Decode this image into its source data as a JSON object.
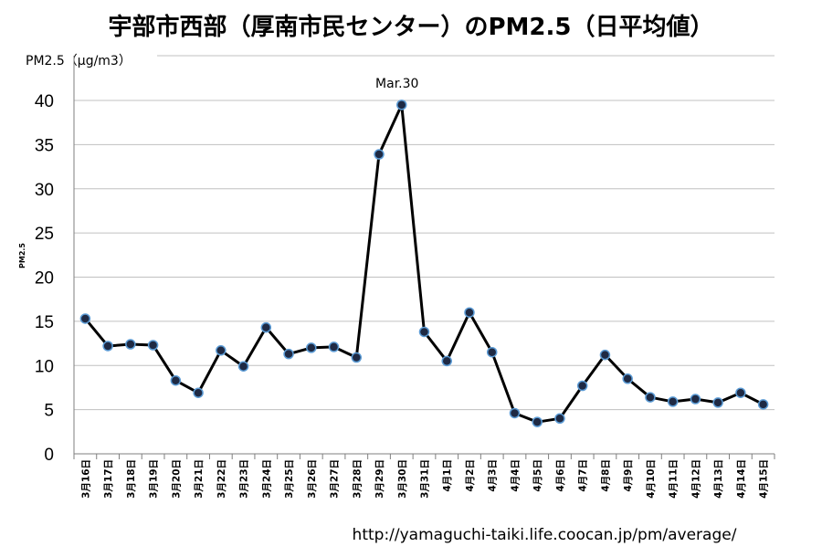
{
  "chart_data": {
    "type": "line",
    "title": "宇部市西部（厚南市民センター）のPM2.5（日平均値）",
    "unit_label": "PM2.5（μg/m3）",
    "ylabel": "PM2.5",
    "ylim": [
      0,
      40
    ],
    "yticks": [
      0,
      5,
      10,
      15,
      20,
      25,
      30,
      35,
      40
    ],
    "grid": true,
    "annotation": {
      "text": "Mar.30",
      "category": "3月30日"
    },
    "source": "http://yamaguchi-taiki.life.coocan.jp/pm/average/",
    "colors": {
      "line": "#000000",
      "marker_fill": "#1f2a44",
      "marker_edge": "#5b9bd5",
      "grid": "#c0c0c0"
    },
    "categories": [
      "3月16日",
      "3月17日",
      "3月18日",
      "3月19日",
      "3月20日",
      "3月21日",
      "3月22日",
      "3月23日",
      "3月24日",
      "3月25日",
      "3月26日",
      "3月27日",
      "3月28日",
      "3月29日",
      "3月30日",
      "3月31日",
      "4月1日",
      "4月2日",
      "4月3日",
      "4月4日",
      "4月5日",
      "4月6日",
      "4月7日",
      "4月8日",
      "4月9日",
      "4月10日",
      "4月11日",
      "4月12日",
      "4月13日",
      "4月14日",
      "4月15日"
    ],
    "values": [
      15.3,
      12.2,
      12.4,
      12.3,
      8.3,
      6.9,
      11.7,
      9.9,
      14.3,
      11.3,
      12.0,
      12.1,
      10.9,
      33.9,
      39.5,
      13.8,
      10.5,
      16.0,
      11.5,
      4.6,
      3.6,
      4.0,
      7.7,
      11.2,
      8.5,
      6.4,
      5.9,
      6.2,
      5.8,
      6.9,
      5.6
    ]
  }
}
